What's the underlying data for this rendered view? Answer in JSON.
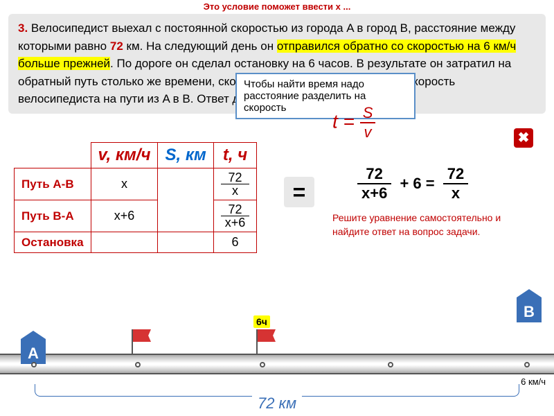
{
  "hint_top": "Это условие поможет ввести x ...",
  "problem": {
    "num": "3.",
    "t1": " Велосипедист выехал с постоянной скоростью из города A в город B, расстояние между которыми равно ",
    "dist": "72",
    "t2": " км. На следующий день он ",
    "hl1": "отправился обратно со скоростью на 6 км/ч больше прежней",
    "t3": ". По дороге он ",
    "hl2": "сделал остановку на 6 часов",
    "t4": ". В результате он затратил на обратный путь столько же времени, сколько на путь из A в B. Найдите скорость велосипедиста на пути из A в B. Ответ дайте в км/ч."
  },
  "tooltip": "Чтобы найти время надо расстояние разделить на скорость",
  "formula": {
    "t": "t =",
    "s": "S",
    "v": "v"
  },
  "close": "✖",
  "table": {
    "h_v": "v, км/ч",
    "h_s": "S, км",
    "h_t": "t, ч",
    "path_ab": "Путь A-B",
    "path_ba": "Путь B-A",
    "stop": "Остановка",
    "x": "x",
    "x6": "x+6",
    "f1n": "72",
    "f1d": "x",
    "f2n": "72",
    "f2d": "x+6",
    "six": "6"
  },
  "eq": "=",
  "equation": {
    "n1": "72",
    "d1": "x+6",
    "plus": " + 6 = ",
    "n2": "72",
    "d2": "x"
  },
  "solve_hint": "Решите уравнение самостоятельно и найдите ответ на вопрос задачи.",
  "markers": {
    "a": "A",
    "b": "B"
  },
  "flag_time": "6ч",
  "distance": "72 км",
  "speed_note": "6 км/ч",
  "colors": {
    "red": "#c00000",
    "blue": "#3a6fb7",
    "yellow": "#ffff00",
    "tooltip_border": "#5a8fc8",
    "gray_bg": "#e8e8e8"
  }
}
